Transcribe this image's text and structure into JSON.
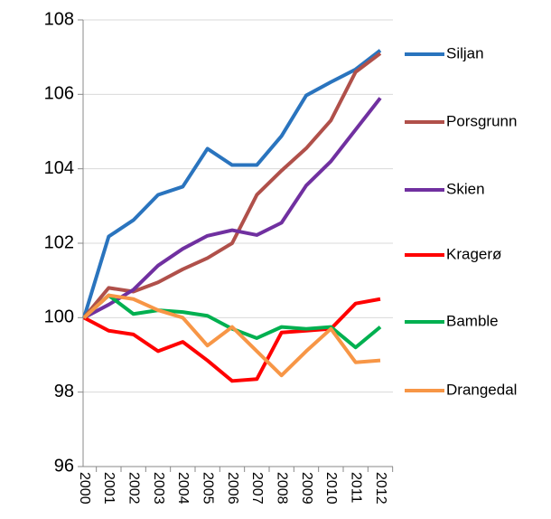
{
  "chart_data": {
    "type": "line",
    "categories": [
      "2000",
      "2001",
      "2002",
      "2003",
      "2004",
      "2005",
      "2006",
      "2007",
      "2008",
      "2009",
      "2010",
      "2011",
      "2012"
    ],
    "series": [
      {
        "name": "Siljan",
        "color": "#2a74be",
        "values": [
          100,
          102.18,
          102.62,
          103.3,
          103.52,
          104.54,
          104.1,
          104.1,
          104.88,
          105.97,
          106.33,
          106.67,
          107.18
        ]
      },
      {
        "name": "Porsgrunn",
        "color": "#b0504a",
        "values": [
          100,
          100.8,
          100.7,
          100.95,
          101.3,
          101.6,
          102.0,
          103.3,
          103.95,
          104.55,
          105.3,
          106.6,
          107.1
        ]
      },
      {
        "name": "Skien",
        "color": "#7030a0",
        "values": [
          100,
          100.35,
          100.75,
          101.4,
          101.85,
          102.2,
          102.35,
          102.22,
          102.55,
          103.55,
          104.2,
          105.05,
          105.9
        ]
      },
      {
        "name": "Kragerø",
        "color": "#ff0000",
        "values": [
          100,
          99.65,
          99.55,
          99.1,
          99.35,
          98.85,
          98.3,
          98.35,
          99.6,
          99.65,
          99.7,
          100.38,
          100.5
        ]
      },
      {
        "name": "Bamble",
        "color": "#00b050",
        "values": [
          100,
          100.6,
          100.1,
          100.2,
          100.15,
          100.05,
          99.7,
          99.45,
          99.75,
          99.7,
          99.75,
          99.2,
          99.75
        ]
      },
      {
        "name": "Drangedal",
        "color": "#f79646",
        "values": [
          100,
          100.6,
          100.5,
          100.2,
          100.0,
          99.25,
          99.75,
          99.1,
          98.45,
          99.1,
          99.7,
          98.8,
          98.85
        ]
      }
    ],
    "ylim": [
      96,
      108
    ],
    "yticks": [
      96,
      98,
      100,
      102,
      104,
      106,
      108
    ],
    "grid": true,
    "legend": "right"
  }
}
